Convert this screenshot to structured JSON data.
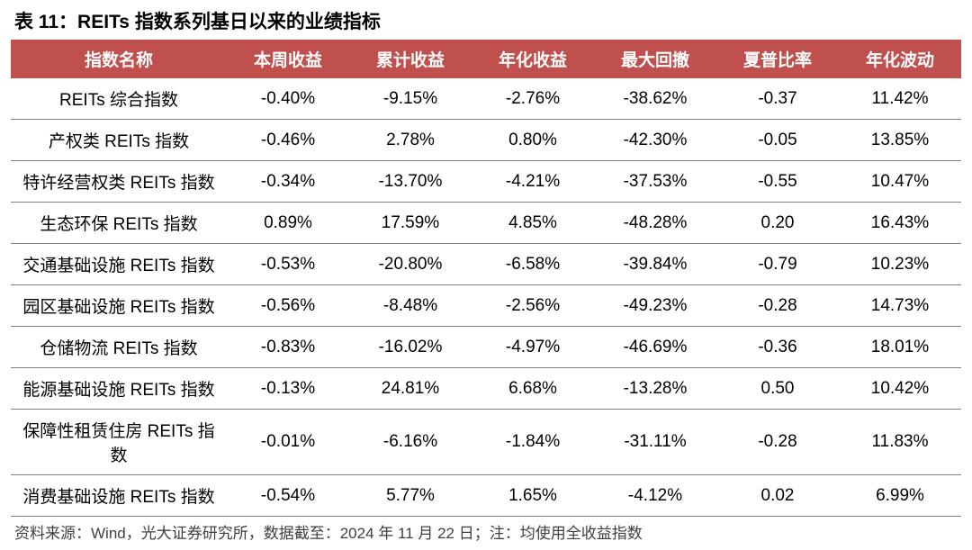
{
  "title": "表 11：REITs 指数系列基日以来的业绩指标",
  "table": {
    "header_bg": "#c0504d",
    "header_color": "#ffffff",
    "row_border_color": "#808080",
    "title_fontsize": 21,
    "header_fontsize": 19,
    "cell_fontsize": 19,
    "columns": [
      "指数名称",
      "本周收益",
      "累计收益",
      "年化收益",
      "最大回撤",
      "夏普比率",
      "年化波动"
    ],
    "col_widths": [
      "240px",
      "auto",
      "auto",
      "auto",
      "auto",
      "auto",
      "auto"
    ],
    "rows": [
      [
        "REITs 综合指数",
        "-0.40%",
        "-9.15%",
        "-2.76%",
        "-38.62%",
        "-0.37",
        "11.42%"
      ],
      [
        "产权类 REITs 指数",
        "-0.46%",
        "2.78%",
        "0.80%",
        "-42.30%",
        "-0.05",
        "13.85%"
      ],
      [
        "特许经营权类 REITs 指数",
        "-0.34%",
        "-13.70%",
        "-4.21%",
        "-37.53%",
        "-0.55",
        "10.47%"
      ],
      [
        "生态环保 REITs 指数",
        "0.89%",
        "17.59%",
        "4.85%",
        "-48.28%",
        "0.20",
        "16.43%"
      ],
      [
        "交通基础设施 REITs 指数",
        "-0.53%",
        "-20.80%",
        "-6.58%",
        "-39.84%",
        "-0.79",
        "10.23%"
      ],
      [
        "园区基础设施 REITs 指数",
        "-0.56%",
        "-8.48%",
        "-2.56%",
        "-49.23%",
        "-0.28",
        "14.73%"
      ],
      [
        "仓储物流 REITs 指数",
        "-0.83%",
        "-16.02%",
        "-4.97%",
        "-46.69%",
        "-0.36",
        "18.01%"
      ],
      [
        "能源基础设施 REITs 指数",
        "-0.13%",
        "24.81%",
        "6.68%",
        "-13.28%",
        "0.50",
        "10.42%"
      ],
      [
        "保障性租赁住房 REITs 指数",
        "-0.01%",
        "-6.16%",
        "-1.84%",
        "-31.11%",
        "-0.28",
        "11.83%"
      ],
      [
        "消费基础设施 REITs 指数",
        "-0.54%",
        "5.77%",
        "1.65%",
        "-4.12%",
        "0.02",
        "6.99%"
      ]
    ]
  },
  "footnote": "资料来源：Wind，光大证券研究所，数据截至：2024 年 11 月 22 日；注：均使用全收益指数"
}
